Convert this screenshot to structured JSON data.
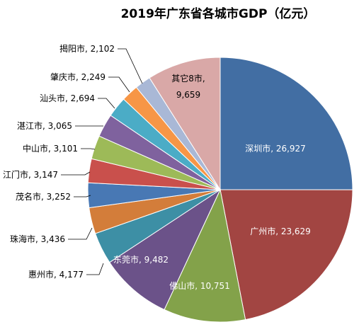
{
  "chart_data": {
    "type": "pie",
    "title": "2019年广东省各城市GDP（亿元）",
    "slices": [
      {
        "name": "深圳市",
        "value": 26927,
        "label": "深圳市, 26,927",
        "color": "#426EA3"
      },
      {
        "name": "广州市",
        "value": 23629,
        "label": "广州市, 23,629",
        "color": "#A24542"
      },
      {
        "name": "佛山市",
        "value": 10751,
        "label": "佛山市, 10,751",
        "color": "#83A24A"
      },
      {
        "name": "东莞市",
        "value": 9482,
        "label": "东莞市, 9,482",
        "color": "#6B5289"
      },
      {
        "name": "惠州市",
        "value": 4177,
        "label": "惠州市, 4,177",
        "color": "#3D8FA5"
      },
      {
        "name": "珠海市",
        "value": 3436,
        "label": "珠海市, 3,436",
        "color": "#D37D3A"
      },
      {
        "name": "茂名市",
        "value": 3252,
        "label": "茂名市, 3,252",
        "color": "#4878B4"
      },
      {
        "name": "江门市",
        "value": 3147,
        "label": "江门市, 3,147",
        "color": "#C9504C"
      },
      {
        "name": "中山市",
        "value": 3101,
        "label": "中山市, 3,101",
        "color": "#9DBA58"
      },
      {
        "name": "湛江市",
        "value": 3065,
        "label": "湛江市, 3,065",
        "color": "#7F629E"
      },
      {
        "name": "汕头市",
        "value": 2694,
        "label": "汕头市, 2,694",
        "color": "#4BACC6"
      },
      {
        "name": "肇庆市",
        "value": 2249,
        "label": "肇庆市, 2,249",
        "color": "#F79646"
      },
      {
        "name": "揭阳市",
        "value": 2102,
        "label": "揭阳市, 2,102",
        "color": "#A9B8D6"
      },
      {
        "name": "其它8市",
        "value": 9659,
        "label": "其它8市, 9,659",
        "color": "#D9A8A7"
      }
    ]
  }
}
